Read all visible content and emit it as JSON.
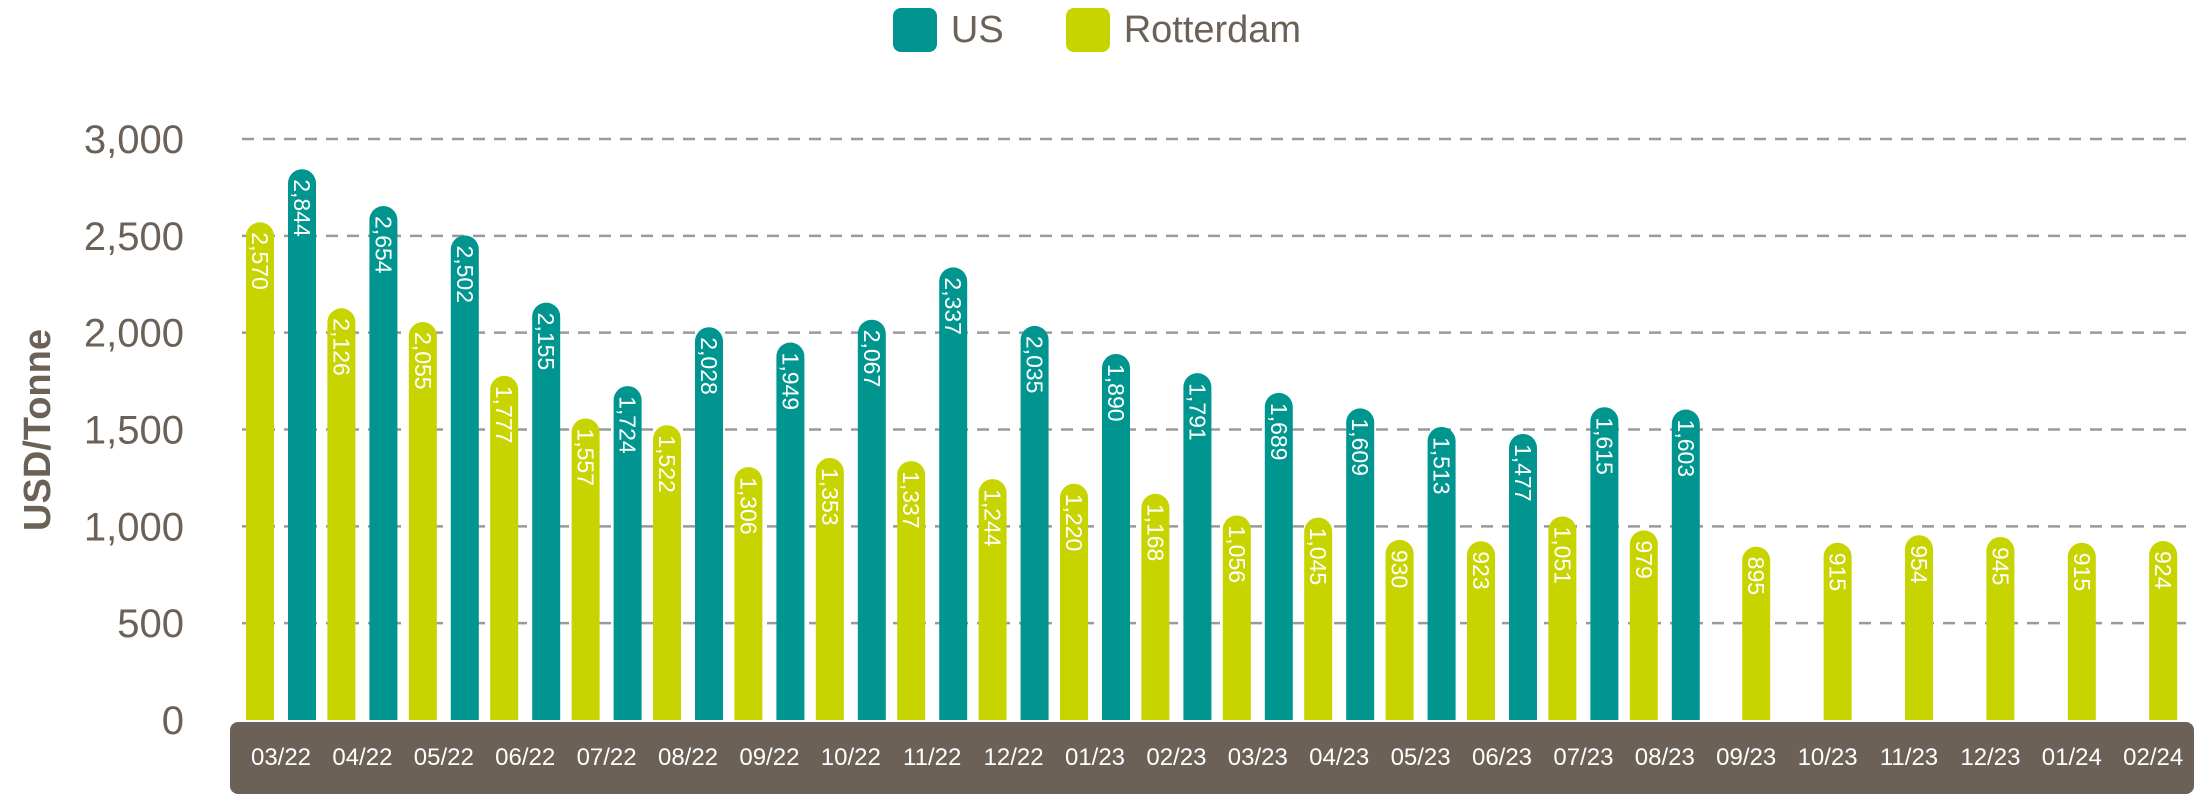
{
  "colors": {
    "us": "#00968f",
    "rotterdam": "#c8d400",
    "axis_band": "#6b6157",
    "grid": "#9a9a9a",
    "text": "#6b6157"
  },
  "chart_data": {
    "type": "bar",
    "ylabel": "USD/Tonne",
    "xlabel": "",
    "ylim": [
      0,
      3000
    ],
    "yticks": [
      "0",
      "500",
      "1,000",
      "1,500",
      "2,000",
      "2,500",
      "3,000"
    ],
    "grid": true,
    "legend_position": "top-center",
    "categories": [
      "03/22",
      "04/22",
      "05/22",
      "06/22",
      "07/22",
      "08/22",
      "09/22",
      "10/22",
      "11/22",
      "12/22",
      "01/23",
      "02/23",
      "03/23",
      "04/23",
      "05/23",
      "06/23",
      "07/23",
      "08/23",
      "09/23",
      "10/23",
      "11/23",
      "12/23",
      "01/24",
      "02/24"
    ],
    "series": [
      {
        "name": "US",
        "values": [
          2844,
          2654,
          2502,
          2155,
          1724,
          2028,
          1949,
          2067,
          2337,
          2035,
          1890,
          1791,
          1689,
          1609,
          1513,
          1477,
          1615,
          1603,
          null,
          null,
          null,
          null,
          null,
          null
        ],
        "labels": [
          "2,844",
          "2,654",
          "2,502",
          "2,155",
          "1,724",
          "2,028",
          "1,949",
          "2,067",
          "2,337",
          "2,035",
          "1,890",
          "1,791",
          "1,689",
          "1,609",
          "1,513",
          "1,477",
          "1,615",
          "1,603",
          null,
          null,
          null,
          null,
          null,
          null
        ]
      },
      {
        "name": "Rotterdam",
        "values": [
          2570,
          2126,
          2055,
          1777,
          1557,
          1522,
          1306,
          1353,
          1337,
          1244,
          1220,
          1168,
          1056,
          1045,
          930,
          923,
          1051,
          979,
          895,
          915,
          954,
          945,
          915,
          924
        ],
        "labels": [
          "2,570",
          "2,126",
          "2,055",
          "1,777",
          "1,557",
          "1,522",
          "1,306",
          "1,353",
          "1,337",
          "1,244",
          "1,220",
          "1,168",
          "1,056",
          "1,045",
          "930",
          "923",
          "1,051",
          "979",
          "895",
          "915",
          "954",
          "945",
          "915",
          "924"
        ]
      }
    ]
  }
}
